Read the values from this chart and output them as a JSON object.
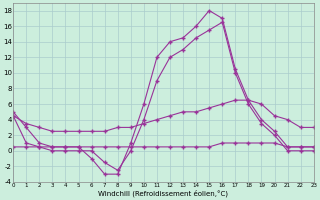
{
  "xlabel": "Windchill (Refroidissement éolien,°C)",
  "bg_color": "#cceedd",
  "grid_color": "#aacccc",
  "line_color": "#993399",
  "x_hours": [
    0,
    1,
    2,
    3,
    4,
    5,
    6,
    7,
    8,
    9,
    10,
    11,
    12,
    13,
    14,
    15,
    16,
    17,
    18,
    19,
    20,
    21,
    22,
    23
  ],
  "curve1": [
    5,
    3,
    1,
    0.5,
    0.5,
    0.5,
    -1,
    -3,
    -3,
    1,
    6,
    12,
    14,
    14.5,
    16,
    18,
    17,
    10.5,
    6.5,
    4,
    2.5,
    0.5,
    0.5,
    0.5
  ],
  "curve2": [
    4.5,
    1,
    0.5,
    0,
    0,
    0,
    0,
    -1.5,
    -2.5,
    0,
    4,
    9,
    12,
    13,
    14.5,
    15.5,
    16.5,
    10,
    6,
    3.5,
    2,
    0,
    0,
    0
  ],
  "curve3": [
    4.5,
    3.5,
    3,
    2.5,
    2.5,
    2.5,
    2.5,
    2.5,
    3,
    3,
    3.5,
    4,
    4.5,
    5,
    5,
    5.5,
    6,
    6.5,
    6.5,
    6,
    4.5,
    4,
    3,
    3
  ],
  "curve4": [
    0.5,
    0.5,
    0.5,
    0.5,
    0.5,
    0.5,
    0.5,
    0.5,
    0.5,
    0.5,
    0.5,
    0.5,
    0.5,
    0.5,
    0.5,
    0.5,
    1,
    1,
    1,
    1,
    1,
    0.5,
    0.5,
    0.5
  ],
  "ylim": [
    -4,
    19
  ],
  "yticks": [
    -4,
    -2,
    0,
    2,
    4,
    6,
    8,
    10,
    12,
    14,
    16,
    18
  ]
}
